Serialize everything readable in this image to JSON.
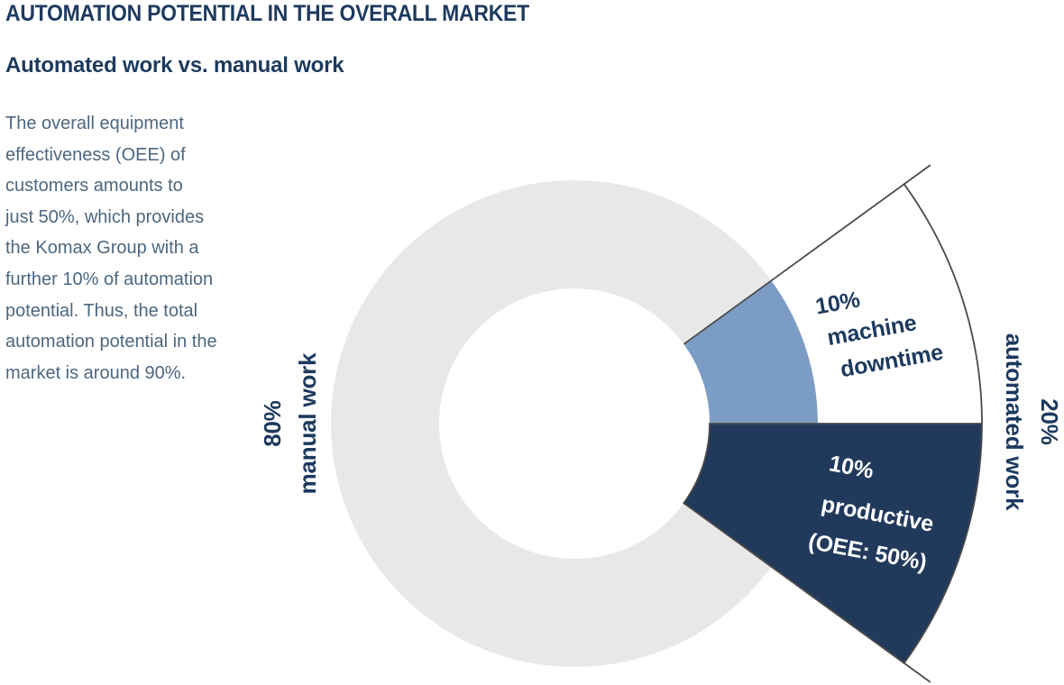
{
  "header": {
    "title": "AUTOMATION POTENTIAL IN THE OVERALL MARKET",
    "subtitle": "Automated work vs. manual work"
  },
  "intro": {
    "lines": [
      "The overall equipment",
      "effectiveness (OEE) of",
      "customers amounts to",
      "just 50%, which provides",
      "the Komax Group with a",
      "further 10% of automation",
      "potential. Thus, the total",
      "automation potential in the",
      "market is around 90%."
    ]
  },
  "chart_data": {
    "type": "pie",
    "subtype": "donut-with-exploded-callout",
    "title": "Automated work vs. manual work",
    "units": "%",
    "slices": [
      {
        "name": "manual_work",
        "label": "80% manual work",
        "value": 80,
        "color": "#E8E8E9"
      },
      {
        "name": "machine_downtime",
        "label": "10% machine downtime",
        "value": 10,
        "color_ring": "#7B9CC4",
        "color_callout": "#FFFFFF"
      },
      {
        "name": "productive",
        "label": "10% productive (OEE: 50%)",
        "value": 10,
        "oee": "50%",
        "color": "#213A5C"
      }
    ],
    "groups": [
      {
        "name": "manual_work",
        "label": "80% manual work",
        "value": 80
      },
      {
        "name": "automated_work",
        "label": "20% automated work",
        "value": 20
      }
    ],
    "labels": {
      "downtime_lines": [
        "10%",
        "machine",
        "downtime"
      ],
      "productive_lines": [
        "10%",
        "productive",
        "(OEE: 50%)"
      ],
      "manual_lines": [
        "80%",
        "manual work"
      ],
      "automated_lines": [
        "20%",
        "automated work"
      ]
    },
    "colors": {
      "navy": "#213A5C",
      "blue": "#7B9CC4",
      "gray": "#E8E8E9",
      "outline": "#4A4A4A",
      "text_navy": "#1D3A5E",
      "text_body": "#4C6780"
    },
    "legend_position": "none",
    "grid": false
  }
}
